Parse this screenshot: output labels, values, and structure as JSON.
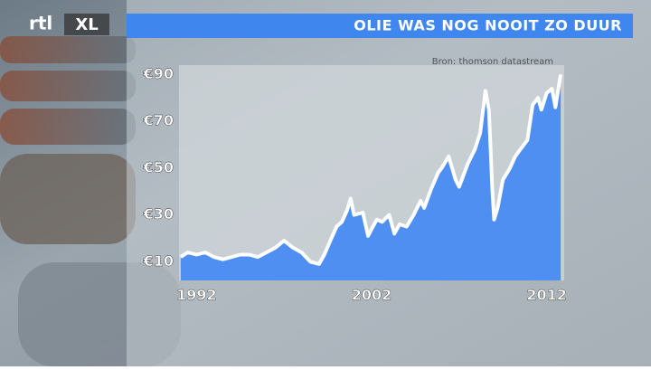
{
  "logo": [
    "rtl",
    "XL"
  ],
  "chart_data": {
    "type": "area",
    "title": "OLIE WAS NOG NOOIT ZO DUUR",
    "source": "Bron: thomson datastream",
    "color": "#4f8ff2",
    "line_color": "#ffffff",
    "grid": false,
    "xlim": [
      1991,
      2013
    ],
    "xticks": [
      1992,
      2002,
      2012
    ],
    "ylim": [
      2,
      94
    ],
    "yticks": [
      {
        "value": 10,
        "label": "€10"
      },
      {
        "value": 30,
        "label": "€30"
      },
      {
        "value": 50,
        "label": "€50"
      },
      {
        "value": 70,
        "label": "€70"
      },
      {
        "value": 90,
        "label": "€90"
      }
    ],
    "x": [
      1991.1,
      1991.5,
      1992,
      1992.5,
      1993,
      1993.5,
      1994,
      1994.5,
      1995,
      1995.5,
      1996,
      1996.5,
      1997,
      1997.5,
      1998,
      1998.5,
      1999,
      1999.3,
      1999.7,
      2000,
      2000.3,
      2000.6,
      2000.8,
      2001,
      2001.5,
      2001.8,
      2002,
      2002.3,
      2002.6,
      2003,
      2003.3,
      2003.6,
      2004,
      2004.4,
      2004.8,
      2005,
      2005.4,
      2005.8,
      2006,
      2006.4,
      2006.8,
      2007,
      2007.5,
      2007.9,
      2008.2,
      2008.5,
      2008.7,
      2008.9,
      2009,
      2009.2,
      2009.5,
      2009.9,
      2010.2,
      2010.5,
      2010.9,
      2011.2,
      2011.5,
      2011.7,
      2012,
      2012.3,
      2012.5,
      2012.8
    ],
    "values": [
      12,
      14,
      13,
      14,
      12,
      11,
      12,
      13,
      13,
      12,
      14,
      16,
      19,
      16,
      14,
      10,
      9,
      13,
      20,
      25,
      27,
      32,
      37,
      30,
      31,
      21,
      24,
      28,
      27,
      30,
      22,
      26,
      25,
      30,
      36,
      33,
      41,
      48,
      50,
      55,
      45,
      42,
      52,
      58,
      65,
      83,
      75,
      40,
      28,
      33,
      45,
      50,
      55,
      58,
      62,
      77,
      80,
      75,
      82,
      84,
      76,
      90
    ]
  }
}
